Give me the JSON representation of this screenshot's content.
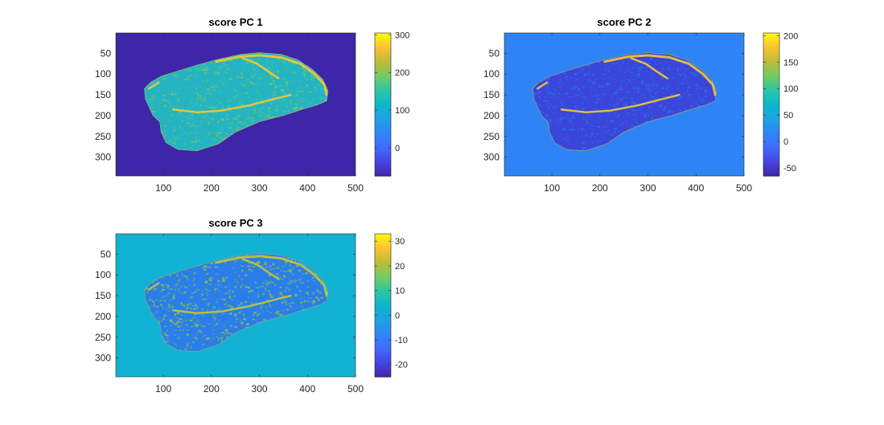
{
  "chart_data": [
    {
      "type": "heatmap",
      "title": "score PC 1",
      "xlabel": "",
      "ylabel": "",
      "xticks": [
        100,
        200,
        300,
        400,
        500
      ],
      "yticks": [
        50,
        100,
        150,
        200,
        250,
        300
      ],
      "xlim": [
        1,
        500
      ],
      "ylim": [
        1,
        345
      ],
      "colorbar": {
        "ticks": [
          0,
          100,
          200,
          300
        ],
        "limits": [
          -75,
          305
        ]
      },
      "colormap": "parula",
      "values": {
        "background": -75,
        "tissue_mean": 130,
        "fat_bands": 300
      },
      "colors": {
        "background": "#3E26A8",
        "tissue_base": "#24B4C4",
        "tissue_texture": "#72C764",
        "fat": "#F2C931"
      }
    },
    {
      "type": "heatmap",
      "title": "score PC 2",
      "xlabel": "",
      "ylabel": "",
      "xticks": [
        100,
        200,
        300,
        400,
        500
      ],
      "yticks": [
        50,
        100,
        150,
        200,
        250,
        300
      ],
      "xlim": [
        1,
        500
      ],
      "ylim": [
        1,
        345
      ],
      "colorbar": {
        "ticks": [
          -50,
          0,
          50,
          100,
          150,
          200
        ],
        "limits": [
          -65,
          205
        ]
      },
      "colormap": "parula",
      "values": {
        "background": 0,
        "tissue_mean": -40,
        "fat_bands": 200
      },
      "colors": {
        "background": "#2E84F4",
        "tissue_base": "#3A45D9",
        "tissue_texture": "#2A6FE8",
        "fat": "#F2C931"
      }
    },
    {
      "type": "heatmap",
      "title": "score PC 3",
      "xlabel": "",
      "ylabel": "",
      "xticks": [
        100,
        200,
        300,
        400,
        500
      ],
      "yticks": [
        50,
        100,
        150,
        200,
        250,
        300
      ],
      "xlim": [
        1,
        500
      ],
      "ylim": [
        1,
        345
      ],
      "colorbar": {
        "ticks": [
          -20,
          -10,
          0,
          10,
          20,
          30
        ],
        "limits": [
          -25,
          33
        ]
      },
      "colormap": "parula",
      "values": {
        "background": 0,
        "tissue_mean": -8,
        "fat_bands": 20
      },
      "colors": {
        "background": "#12B2D4",
        "tissue_base": "#2A7EEA",
        "tissue_texture": "#8DC04A",
        "fat": "#C2C53A"
      }
    }
  ]
}
